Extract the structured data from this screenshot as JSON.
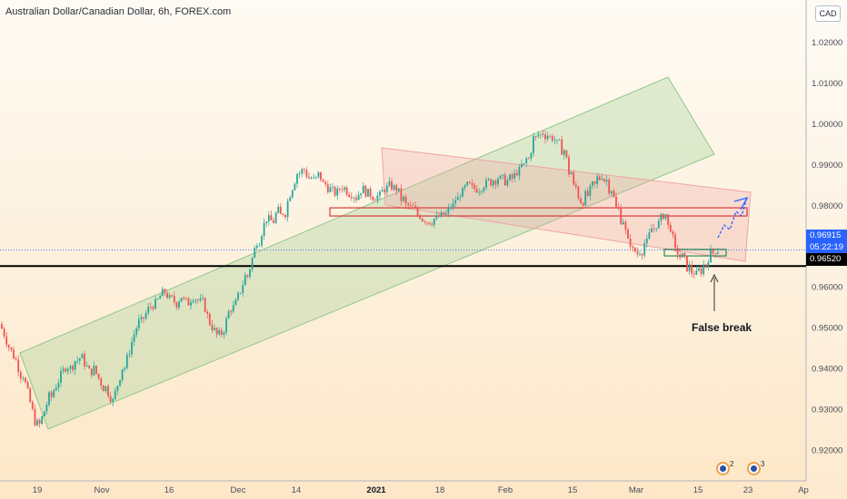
{
  "header": {
    "title": "Australian Dollar/Canadian Dollar, 6h, FOREX.com",
    "currency_button": "CAD"
  },
  "price_axis": {
    "labels": [
      "1.02000",
      "1.01000",
      "1.00000",
      "0.99000",
      "0.98000",
      "0.96000",
      "0.95000",
      "0.94000",
      "0.93000",
      "0.92000"
    ],
    "current_price": "0.96915",
    "countdown": "05:22:19",
    "level_price": "0.96520"
  },
  "time_axis": {
    "labels": [
      "19",
      "Nov",
      "16",
      "Dec",
      "14",
      "2021",
      "18",
      "Feb",
      "15",
      "Mar",
      "15",
      "23",
      "Ap"
    ]
  },
  "annotation": {
    "text": "False break"
  },
  "events": [
    {
      "count": "2"
    },
    {
      "count": "3"
    }
  ],
  "colors": {
    "candle_up": "#26a69a",
    "candle_down": "#ef5350",
    "channel_green": "#8fc88a",
    "channel_red": "#f0a3a3",
    "current_price_tag": "#2962ff",
    "level_tag": "#000000",
    "projection": "#2962ff"
  },
  "chart_data": {
    "type": "candlestick",
    "title": "Australian Dollar/Canadian Dollar, 6h, FOREX.com",
    "ylim": [
      0.9125,
      1.0305
    ],
    "y_ticks": [
      1.02,
      1.01,
      1.0,
      0.99,
      0.98,
      0.96,
      0.95,
      0.94,
      0.93,
      0.92
    ],
    "x_ticks": [
      "19",
      "Nov",
      "16",
      "Dec",
      "14",
      "2021",
      "18",
      "Feb",
      "15",
      "Mar",
      "15",
      "23",
      "Ap"
    ],
    "current_price": 0.96915,
    "horizontal_level": 0.9652,
    "price_path": [
      [
        0.951,
        0.949,
        0.946,
        0.944,
        0.942,
        0.939,
        0.935,
        0.931,
        0.927,
        0.926,
        0.929,
        0.932,
        0.935,
        0.937,
        0.939,
        0.941,
        0.94,
        0.942,
        0.943,
        0.941,
        0.939,
        0.94,
        0.938,
        0.936,
        0.934,
        0.932
      ],
      [
        0.932,
        0.936,
        0.94,
        0.944,
        0.948,
        0.951,
        0.953,
        0.955,
        0.956,
        0.958,
        0.959,
        0.957,
        0.956,
        0.958,
        0.956,
        0.958,
        0.957,
        0.956,
        0.952,
        0.95,
        0.948,
        0.95,
        0.954,
        0.956
      ],
      [
        0.956,
        0.959,
        0.962,
        0.966,
        0.97,
        0.974,
        0.977,
        0.976,
        0.979,
        0.977,
        0.982,
        0.985,
        0.988,
        0.989,
        0.987,
        0.986,
        0.988,
        0.985,
        0.984,
        0.983,
        0.985,
        0.984,
        0.983,
        0.982,
        0.984
      ],
      [
        0.984,
        0.983,
        0.982,
        0.984,
        0.985,
        0.983,
        0.98,
        0.979,
        0.977,
        0.976,
        0.977,
        0.978,
        0.98,
        0.983,
        0.985,
        0.984,
        0.985,
        0.986,
        0.987,
        0.986,
        0.987,
        0.989,
        0.992,
        0.997,
        0.998
      ],
      [
        0.998,
        0.997,
        0.996,
        0.994,
        0.99,
        0.984,
        0.981,
        0.983,
        0.985,
        0.988,
        0.986,
        0.982,
        0.978,
        0.973,
        0.969,
        0.968,
        0.971,
        0.974,
        0.976,
        0.978,
        0.973,
        0.968,
        0.967,
        0.964,
        0.963,
        0.965,
        0.968,
        0.9692
      ]
    ],
    "channels": [
      {
        "name": "",
        "color": "green"
      },
      {
        "name": "",
        "color": "red"
      }
    ],
    "zones": [
      {
        "low": 0.9775,
        "high": 0.9795
      },
      {
        "low": 0.9677,
        "high": 0.9693
      }
    ]
  }
}
